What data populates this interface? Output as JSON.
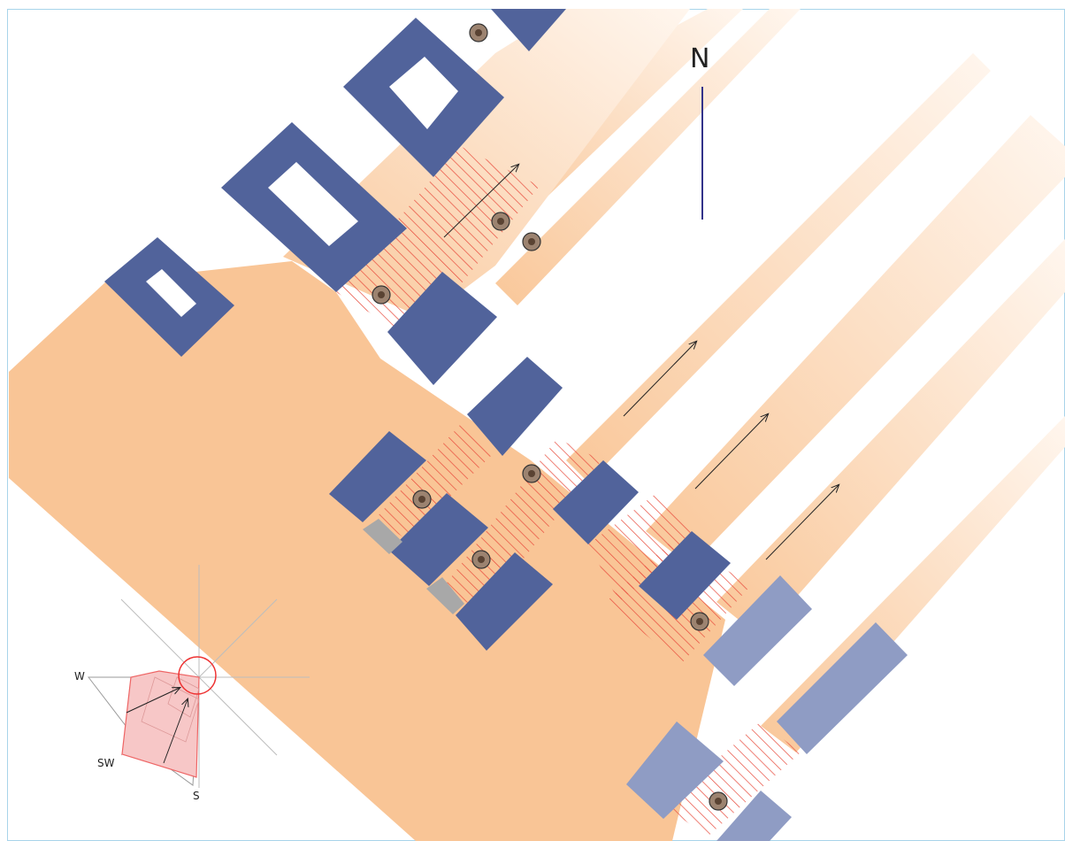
{
  "map": {
    "north_label": "N",
    "wind_rose": {
      "label_w": "W",
      "label_sw": "SW",
      "label_s": "S"
    },
    "colors": {
      "street_light": "#fde8d2",
      "street_dark": "#f8c08e",
      "building_dark": "#51639b",
      "building_light": "#8f9cc4",
      "crosswalk_stripe": "#e84a3c",
      "gray_block": "#a8a8a8",
      "rose_fill": "#f7c7c7",
      "north_line": "#33338a"
    }
  }
}
